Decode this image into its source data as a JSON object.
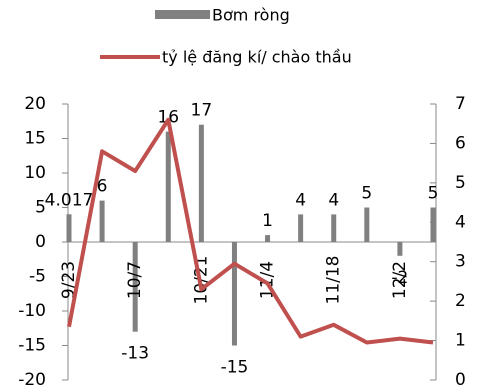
{
  "chart_data": {
    "type": "bar-line",
    "categories": [
      "9/23",
      null,
      "10/7",
      null,
      "10/21",
      null,
      "11/4",
      null,
      "11/18",
      null,
      "12/2",
      null
    ],
    "series": [
      {
        "name": "Bơm ròng",
        "type": "bar",
        "color": "#808080",
        "values": [
          4.017,
          6,
          -13,
          16,
          17,
          -15,
          1,
          4,
          4,
          5,
          -2,
          5
        ]
      },
      {
        "name": "tỷ lệ đăng kí/ chào thầu",
        "type": "line",
        "axis": "y2",
        "color": "#c0504d",
        "values": [
          1.35,
          5.8,
          5.3,
          6.6,
          2.3,
          2.95,
          2.45,
          1.1,
          1.4,
          0.95,
          1.05,
          0.95
        ]
      }
    ],
    "ylim": [
      -20,
      20
    ],
    "yticks": [
      -20,
      -15,
      -10,
      -5,
      0,
      5,
      10,
      15,
      20
    ],
    "y2lim": [
      0,
      7
    ],
    "y2ticks": [
      0,
      1,
      2,
      3,
      4,
      5,
      6,
      7
    ]
  }
}
